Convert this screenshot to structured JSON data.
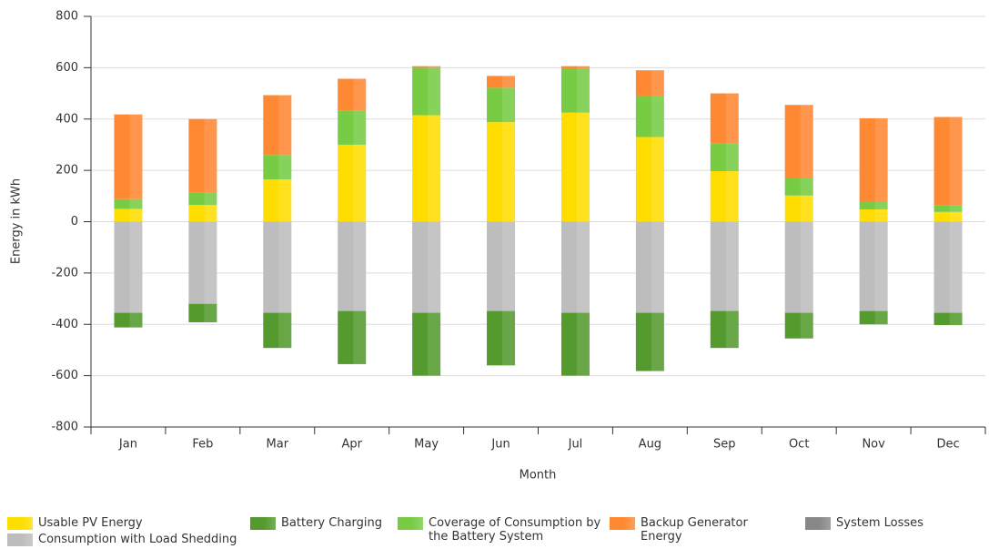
{
  "chart_data": {
    "type": "bar",
    "stacked": true,
    "y_label": "Energy in kWh",
    "x_label": "Month",
    "categories": [
      "Jan",
      "Feb",
      "Mar",
      "Apr",
      "May",
      "Jun",
      "Jul",
      "Aug",
      "Sep",
      "Oct",
      "Nov",
      "Dec"
    ],
    "series": [
      {
        "name": "Usable PV Energy",
        "color": "#ffdd00",
        "values": [
          50,
          65,
          165,
          300,
          415,
          388,
          425,
          330,
          197,
          102,
          48,
          38
        ]
      },
      {
        "name": "Consumption with Load Shedding",
        "color": "#bdbdbd",
        "values": [
          -355,
          -320,
          -355,
          -348,
          -355,
          -348,
          -355,
          -355,
          -348,
          -355,
          -348,
          -355
        ]
      },
      {
        "name": "Battery Charging",
        "color": "#559a2f",
        "values": [
          -57,
          -72,
          -137,
          -207,
          -245,
          -212,
          -245,
          -227,
          -144,
          -100,
          -52,
          -48
        ]
      },
      {
        "name": "Coverage of Consumption by the Battery System",
        "color": "#77cc44",
        "values": [
          38,
          48,
          95,
          132,
          185,
          134,
          171,
          158,
          107,
          70,
          30,
          27
        ]
      },
      {
        "name": "Backup Generator Energy",
        "color": "#ff8833",
        "values": [
          330,
          287,
          233,
          125,
          6,
          46,
          10,
          102,
          196,
          283,
          325,
          343
        ]
      },
      {
        "name": "System Losses",
        "color": "#888888",
        "values": [
          0,
          0,
          0,
          0,
          0,
          0,
          0,
          0,
          0,
          0,
          0,
          0
        ]
      }
    ],
    "ylim": [
      -800,
      800
    ],
    "yticks": [
      -800,
      -600,
      -400,
      -200,
      0,
      200,
      400,
      600,
      800
    ],
    "grid": true
  }
}
